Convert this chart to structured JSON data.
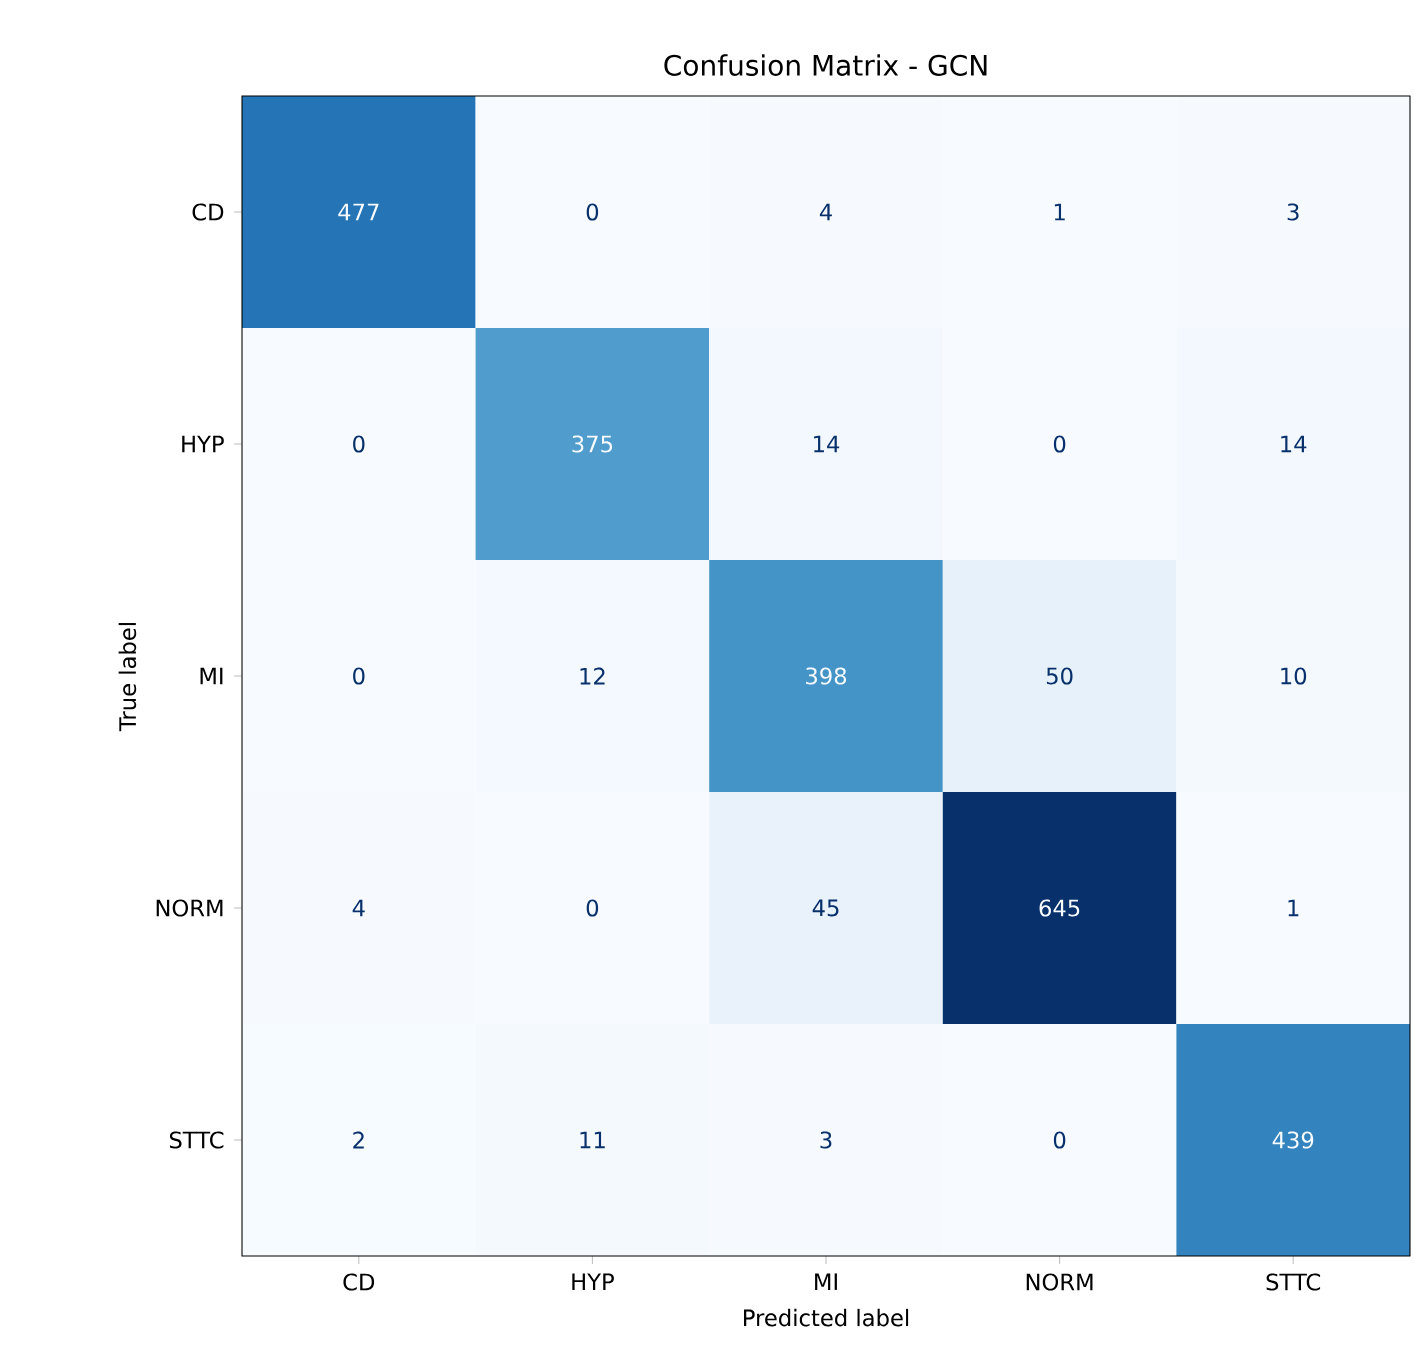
{
  "chart_data": {
    "type": "heatmap",
    "title": "Confusion Matrix - GCN",
    "xlabel": "Predicted label",
    "ylabel": "True label",
    "categories": [
      "CD",
      "HYP",
      "MI",
      "NORM",
      "STTC"
    ],
    "y_categories": [
      "CD",
      "HYP",
      "MI",
      "NORM",
      "STTC"
    ],
    "cells": [
      [
        477,
        0,
        4,
        1,
        3
      ],
      [
        0,
        375,
        14,
        0,
        14
      ],
      [
        0,
        12,
        398,
        50,
        10
      ],
      [
        4,
        0,
        45,
        645,
        1
      ],
      [
        2,
        11,
        3,
        0,
        439
      ]
    ],
    "data_labels": true
  }
}
